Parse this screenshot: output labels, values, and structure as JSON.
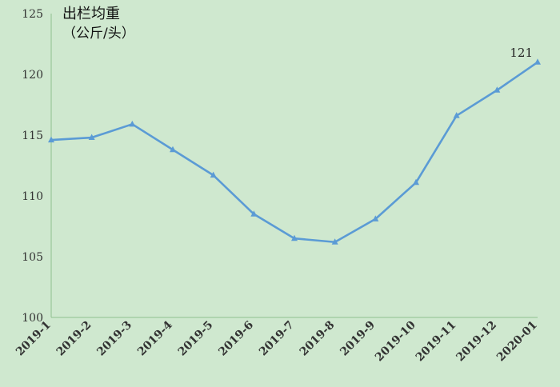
{
  "chart_data": {
    "type": "line",
    "title": "出栏均重",
    "ylabel": "（公斤/头）",
    "xlabel": "",
    "categories": [
      "2019-1",
      "2019-2",
      "2019-3",
      "2019-4",
      "2019-5",
      "2019-6",
      "2019-7",
      "2019-8",
      "2019-9",
      "2019-10",
      "2019-11",
      "2019-12",
      "2020-01"
    ],
    "series": [
      {
        "values": [
          114.6,
          114.8,
          115.9,
          113.8,
          111.7,
          108.5,
          106.5,
          106.2,
          108.1,
          111.1,
          116.6,
          118.7,
          121.0
        ],
        "color": "#5b9bd5"
      }
    ],
    "ylim": [
      100,
      125
    ],
    "yticks": [
      "100",
      "105",
      "110",
      "115",
      "120",
      "125"
    ],
    "annotations": [
      {
        "index": 12,
        "text": "121"
      }
    ],
    "grid": false,
    "marker": "triangle",
    "background": "#cfe8cf",
    "axis_color": "#8fbf8f"
  }
}
